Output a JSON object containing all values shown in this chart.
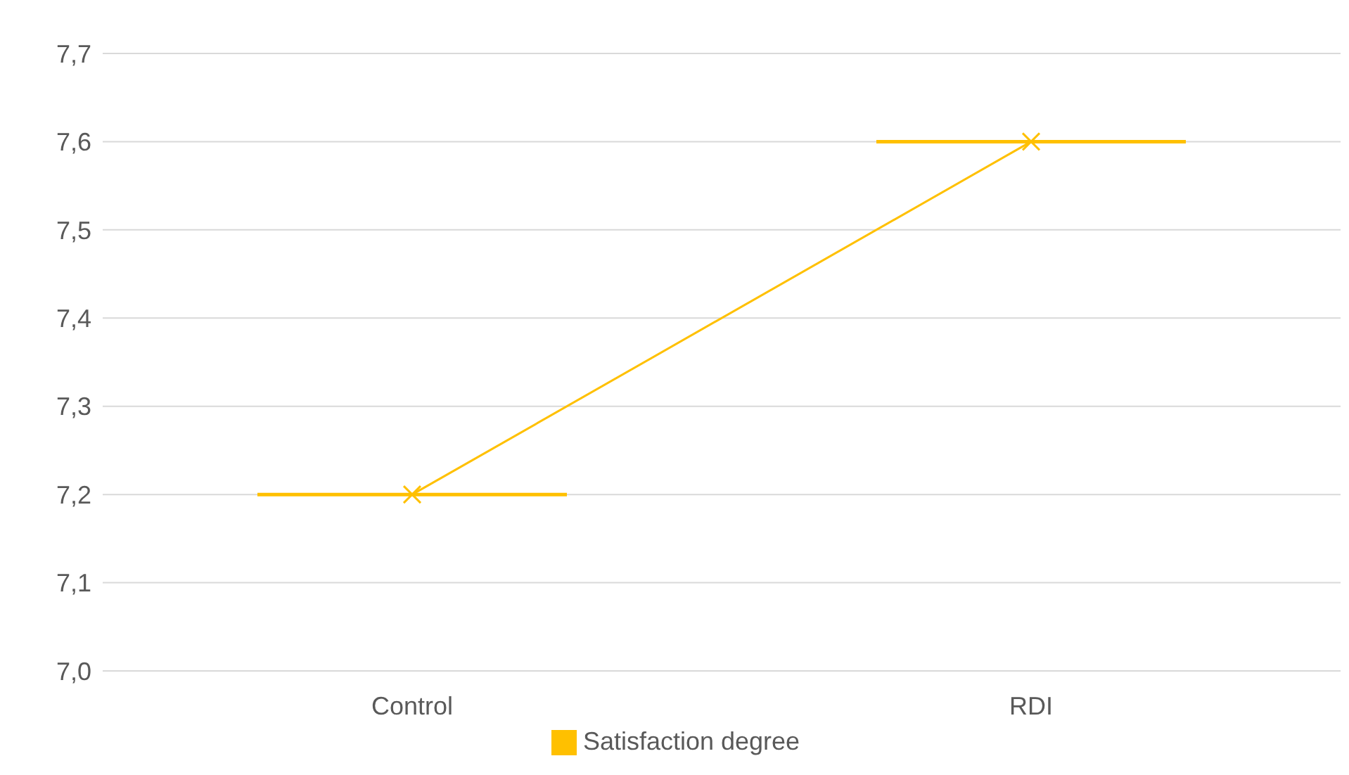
{
  "chart_data": {
    "type": "line",
    "categories": [
      "Control",
      "RDI"
    ],
    "series": [
      {
        "name": "Satisfaction degree",
        "color": "#ffc000",
        "values": [
          7.2,
          7.6
        ]
      }
    ],
    "ylim": [
      7.0,
      7.7
    ],
    "yticks": [
      {
        "value": 7.0,
        "label": "7,0"
      },
      {
        "value": 7.1,
        "label": "7,1"
      },
      {
        "value": 7.2,
        "label": "7,2"
      },
      {
        "value": 7.3,
        "label": "7,3"
      },
      {
        "value": 7.4,
        "label": "7,4"
      },
      {
        "value": 7.5,
        "label": "7,5"
      },
      {
        "value": 7.6,
        "label": "7,6"
      },
      {
        "value": 7.7,
        "label": "7,7"
      }
    ],
    "grid": "y",
    "legend": "bottom",
    "marker": "cross",
    "line_style": "solid"
  }
}
